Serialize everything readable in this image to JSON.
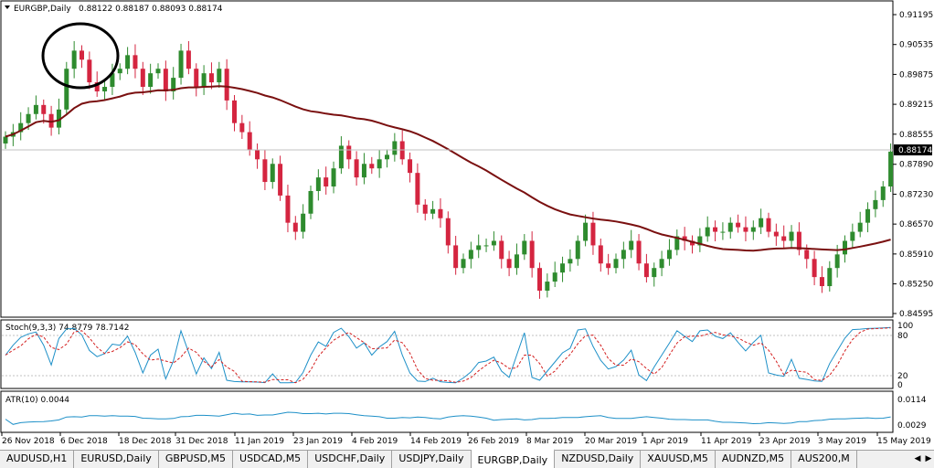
{
  "main_chart": {
    "title": "EURGBP,Daily",
    "ohlc": "0.88122 0.88187 0.88093 0.88174",
    "current_price": "0.88174",
    "y_ticks": [
      "0.91195",
      "0.90535",
      "0.89875",
      "0.89215",
      "0.88555",
      "0.87890",
      "0.87230",
      "0.86570",
      "0.85910",
      "0.85250",
      "0.84595"
    ],
    "annotation": "circle-highlight"
  },
  "stoch": {
    "label": "Stoch(9,3,3) 74.8779 78.7142",
    "y_ticks": [
      "100",
      "80",
      "20",
      "0"
    ]
  },
  "atr": {
    "label": "ATR(10) 0.0044",
    "y_ticks": [
      "0.0114",
      "0.0029"
    ]
  },
  "x_labels": [
    "26 Nov 2018",
    "6 Dec 2018",
    "18 Dec 2018",
    "31 Dec 2018",
    "11 Jan 2019",
    "23 Jan 2019",
    "4 Feb 2019",
    "14 Feb 2019",
    "26 Feb 2019",
    "8 Mar 2019",
    "20 Mar 2019",
    "1 Apr 2019",
    "11 Apr 2019",
    "23 Apr 2019",
    "3 May 2019",
    "15 May 2019"
  ],
  "tabs": [
    "AUDUSD,H1",
    "EURUSD,Daily",
    "GBPUSD,M5",
    "USDCAD,M5",
    "USDCHF,Daily",
    "USDJPY,Daily",
    "EURGBP,Daily",
    "NZDUSD,Daily",
    "XAUUSD,M5",
    "AUDNZD,M5",
    "AUS200,M"
  ],
  "active_tab": "EURGBP,Daily",
  "colors": {
    "bull": "#2e8b2e",
    "bear": "#d42540",
    "ma": "#7a1010",
    "stoch_main": "#1e90c8",
    "stoch_signal": "#d42020",
    "atr": "#1e90c8"
  },
  "chart_data": {
    "type": "candlestick",
    "title": "EURGBP,Daily",
    "x_range": [
      "26 Nov 2018",
      "15 May 2019"
    ],
    "ylim": [
      0.84595,
      0.91195
    ],
    "series": [
      {
        "name": "EURGBP",
        "close_approx": [
          0.885,
          0.886,
          0.888,
          0.89,
          0.892,
          0.89,
          0.887,
          0.891,
          0.9,
          0.904,
          0.902,
          0.897,
          0.895,
          0.896,
          0.899,
          0.9,
          0.903,
          0.9,
          0.896,
          0.899,
          0.9,
          0.895,
          0.898,
          0.904,
          0.9,
          0.896,
          0.899,
          0.897,
          0.9,
          0.893,
          0.888,
          0.886,
          0.882,
          0.88,
          0.875,
          0.879,
          0.872,
          0.866,
          0.864,
          0.868,
          0.873,
          0.876,
          0.874,
          0.878,
          0.883,
          0.88,
          0.876,
          0.879,
          0.878,
          0.88,
          0.881,
          0.884,
          0.88,
          0.877,
          0.87,
          0.868,
          0.869,
          0.867,
          0.861,
          0.856,
          0.858,
          0.86,
          0.861,
          0.861,
          0.862,
          0.858,
          0.856,
          0.859,
          0.862,
          0.856,
          0.851,
          0.853,
          0.855,
          0.857,
          0.858,
          0.862,
          0.866,
          0.861,
          0.857,
          0.856,
          0.858,
          0.86,
          0.862,
          0.857,
          0.854,
          0.856,
          0.858,
          0.86,
          0.863,
          0.862,
          0.861,
          0.863,
          0.865,
          0.864,
          0.864,
          0.866,
          0.865,
          0.864,
          0.865,
          0.867,
          0.864,
          0.863,
          0.862,
          0.864,
          0.86,
          0.858,
          0.854,
          0.852,
          0.856,
          0.859,
          0.862,
          0.864,
          0.866,
          0.869,
          0.871,
          0.874,
          0.8817
        ]
      }
    ]
  }
}
